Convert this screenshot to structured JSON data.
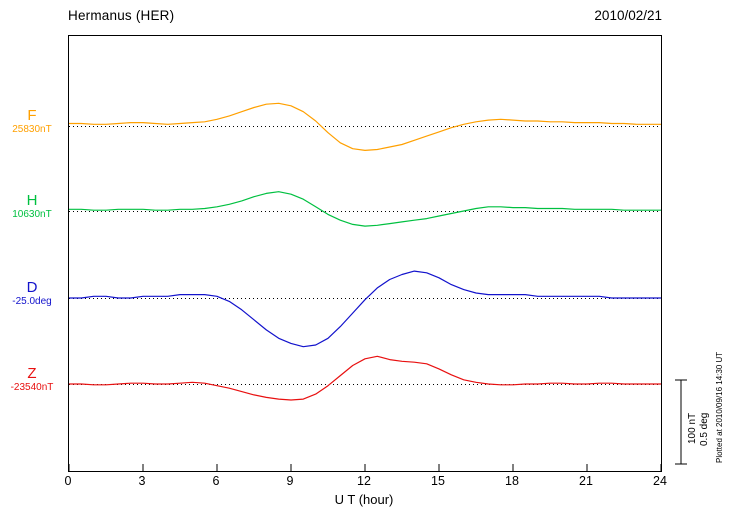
{
  "chart_data": {
    "type": "line",
    "title": "Hermanus (HER)",
    "date": "2010/02/21",
    "xlabel": "U T (hour)",
    "xlim": [
      0,
      24
    ],
    "xtick_labels": [
      "0",
      "3",
      "6",
      "9",
      "12",
      "15",
      "18",
      "21",
      "24"
    ],
    "grid": "dotted horizontal baseline per channel",
    "legend_position": "left channel labels",
    "x_hours": [
      0,
      0.5,
      1,
      1.5,
      2,
      2.5,
      3,
      3.5,
      4,
      4.5,
      5,
      5.5,
      6,
      6.5,
      7,
      7.5,
      8,
      8.5,
      9,
      9.5,
      10,
      10.5,
      11,
      11.5,
      12,
      12.5,
      13,
      13.5,
      14,
      14.5,
      15,
      15.5,
      16,
      16.5,
      17,
      17.5,
      18,
      18.5,
      19,
      19.5,
      20,
      20.5,
      21,
      21.5,
      22,
      22.5,
      23,
      23.5,
      24
    ],
    "series": [
      {
        "name": "F",
        "baseline_label": "25830nT",
        "baseline_value": 25830,
        "unit": "nT",
        "color": "#FFA000",
        "offsets": [
          3,
          3,
          2,
          2,
          3,
          4,
          4,
          3,
          2,
          3,
          4,
          5,
          8,
          12,
          17,
          22,
          26,
          27,
          24,
          17,
          6,
          -8,
          -20,
          -27,
          -29,
          -28,
          -25,
          -22,
          -17,
          -12,
          -7,
          -2,
          2,
          5,
          7,
          8,
          7,
          6,
          6,
          5,
          5,
          4,
          4,
          4,
          3,
          3,
          2,
          2,
          2
        ]
      },
      {
        "name": "H",
        "baseline_label": "10630nT",
        "baseline_value": 10630,
        "unit": "nT",
        "color": "#00C040",
        "offsets": [
          2,
          2,
          1,
          1,
          2,
          2,
          2,
          1,
          1,
          2,
          2,
          3,
          5,
          8,
          12,
          17,
          21,
          23,
          20,
          14,
          5,
          -4,
          -11,
          -16,
          -18,
          -17,
          -15,
          -13,
          -11,
          -9,
          -6,
          -3,
          0,
          3,
          5,
          5,
          4,
          4,
          3,
          3,
          3,
          2,
          2,
          2,
          2,
          1,
          1,
          1,
          1
        ]
      },
      {
        "name": "D",
        "baseline_label": "-25.0deg",
        "baseline_value": -25.0,
        "unit": "deg",
        "color": "#1212CC",
        "offsets": [
          0,
          0,
          0.01,
          0.01,
          0,
          0,
          0.01,
          0.01,
          0.01,
          0.02,
          0.02,
          0.02,
          0.01,
          -0.02,
          -0.07,
          -0.13,
          -0.19,
          -0.24,
          -0.27,
          -0.29,
          -0.28,
          -0.24,
          -0.17,
          -0.09,
          -0.01,
          0.06,
          0.11,
          0.14,
          0.16,
          0.15,
          0.12,
          0.08,
          0.05,
          0.03,
          0.02,
          0.02,
          0.02,
          0.02,
          0.01,
          0.01,
          0.01,
          0.01,
          0.01,
          0.01,
          0,
          0,
          0,
          0,
          0
        ]
      },
      {
        "name": "Z",
        "baseline_label": "-23540nT",
        "baseline_value": -23540,
        "unit": "nT",
        "color": "#E81010",
        "offsets": [
          0,
          0,
          -1,
          -1,
          0,
          1,
          1,
          0,
          0,
          1,
          2,
          1,
          -2,
          -5,
          -9,
          -13,
          -16,
          -18,
          -19,
          -18,
          -12,
          -2,
          10,
          22,
          30,
          33,
          29,
          27,
          26,
          24,
          18,
          11,
          5,
          2,
          0,
          -1,
          -1,
          0,
          0,
          1,
          1,
          0,
          0,
          1,
          1,
          0,
          0,
          0,
          0
        ]
      }
    ],
    "scale_bar": {
      "nt_label": "100 nT",
      "deg_label": "0.5 deg",
      "nT": 100,
      "deg": 0.5
    },
    "annotation": "Plotted at 2010/09/16 14:30 UT"
  }
}
